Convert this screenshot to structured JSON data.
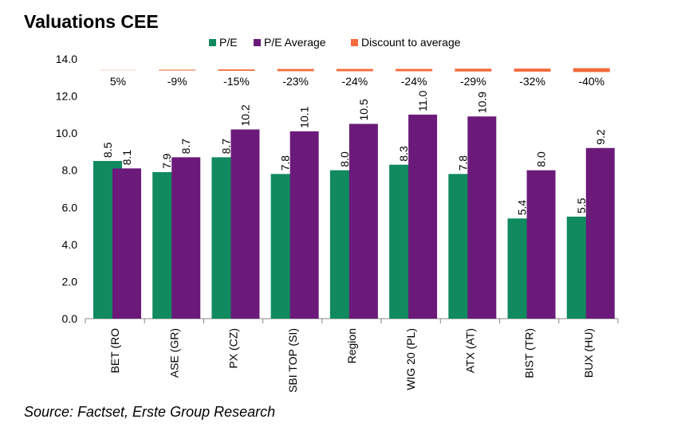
{
  "chart_data": {
    "type": "bar",
    "title": "Valuations CEE",
    "source": "Source: Factset, Erste Group Research",
    "categories": [
      "BET (RO",
      "ASE (GR)",
      "PX (CZ)",
      "SBI TOP (SI)",
      "Region",
      "WIG 20 (PL)",
      "ATX (AT)",
      "BIST (TR)",
      "BUX (HU)"
    ],
    "series": [
      {
        "name": "P/E",
        "color": "#108a5e",
        "values": [
          8.5,
          7.9,
          8.7,
          7.8,
          8.0,
          8.3,
          7.8,
          5.4,
          5.5
        ],
        "value_labels": [
          "8.5",
          "7.9",
          "8.7",
          "7.8",
          "8.0",
          "8.3",
          "7.8",
          "5.4",
          "5.5"
        ]
      },
      {
        "name": "P/E Average",
        "color": "#6b1a7a",
        "values": [
          8.1,
          8.7,
          10.2,
          10.1,
          10.5,
          11.0,
          10.9,
          8.0,
          9.2
        ],
        "value_labels": [
          "8.1",
          "8.7",
          "10.2",
          "10.1",
          "10.5",
          "11.0",
          "10.9",
          "8.0",
          "9.2"
        ]
      },
      {
        "name": "Discount to average",
        "color": "#f26b3a",
        "axis": "y2",
        "values": [
          5,
          -9,
          -15,
          -23,
          -24,
          -24,
          -29,
          -32,
          -40
        ],
        "value_labels": [
          "5%",
          "-9%",
          "-15%",
          "-23%",
          "-24%",
          "-24%",
          "-29%",
          "-32%",
          "-40%"
        ]
      }
    ],
    "ylim": [
      0,
      14
    ],
    "yticks": [
      {
        "value": 0,
        "label": "0.0"
      },
      {
        "value": 2,
        "label": "2.0"
      },
      {
        "value": 4,
        "label": "4.0"
      },
      {
        "value": 6,
        "label": "6.0"
      },
      {
        "value": 8,
        "label": "8.0"
      },
      {
        "value": 10,
        "label": "10.0"
      },
      {
        "value": 12,
        "label": "12.0"
      },
      {
        "value": 14,
        "label": "14.0"
      }
    ]
  }
}
